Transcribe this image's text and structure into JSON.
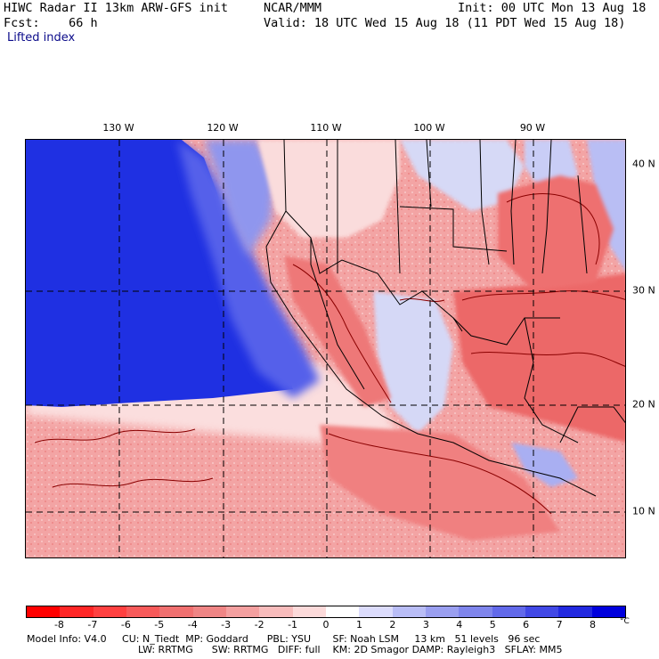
{
  "header": {
    "title": "HIWC Radar II 13km ARW-GFS init",
    "forecast": "Fcst:    66 h",
    "field": "Lifted index",
    "center": "NCAR/MMM",
    "init": "Init: 00 UTC Mon 13 Aug 18",
    "valid": "Valid: 18 UTC Wed 15 Aug 18 (11 PDT Wed 15 Aug 18)"
  },
  "map": {
    "longitude_labels": [
      "130 W",
      "120 W",
      "110 W",
      "100 W",
      "90 W"
    ],
    "latitude_labels": [
      "40 N",
      "30 N",
      "20 N",
      "10 N"
    ],
    "colors": {
      "ocean_stable": "#1e2fe0",
      "land_unstable": "#f4a8a8",
      "strong_unstable": "#ec6a6a",
      "neutral": "#fbe2e2",
      "light_stable": "#c8cdf5",
      "contour": "#8a0000",
      "boundary": "#000000"
    }
  },
  "colorbar": {
    "labels": [
      "-8",
      "-7",
      "-6",
      "-5",
      "-4",
      "-3",
      "-2",
      "-1",
      "0",
      "1",
      "2",
      "3",
      "4",
      "5",
      "6",
      "7",
      "8"
    ],
    "unit": "°C",
    "colors": [
      "#ff0000",
      "#ff2626",
      "#ff4040",
      "#f75a5a",
      "#f07070",
      "#ef8585",
      "#f4a0a0",
      "#f8bcbc",
      "#fcdada",
      "#ffffff",
      "#dcdcfc",
      "#b9bdf6",
      "#9a9ff0",
      "#7f85ec",
      "#6269ea",
      "#4148e6",
      "#2229e0",
      "#0000dd"
    ]
  },
  "footer": {
    "line1": "Model Info: V4.0     CU: N_Tiedt  MP: Goddard      PBL: YSU       SF: Noah LSM     13 km   51 levels   96 sec",
    "line2": "LW: RRTMG      SW: RRTMG   DIFF: full    KM: 2D Smagor DAMP: Rayleigh3   SFLAY: MM5"
  }
}
